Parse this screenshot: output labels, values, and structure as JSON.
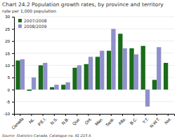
{
  "chart_data": {
    "type": "bar",
    "title": "Chart 24.2 Population growth rates, by province and territory",
    "ylabel": "rate per 1,000 population",
    "annotations": [
      "Source: Statistics Canada, Catalogue no. 91-215-X."
    ],
    "categories": [
      "Canada",
      "NL.",
      "P.E.I.",
      "N.S.",
      "N.B.",
      "Que.",
      "Ont.",
      "Man.",
      "Sask.",
      "Alta.",
      "B.C.",
      "Y.T.",
      "N.W.T.",
      "Nvt."
    ],
    "series": [
      {
        "name": "2007/2008",
        "color": "#1a6b1a",
        "values": [
          12,
          -0.5,
          10,
          1,
          2,
          9,
          10.5,
          13.5,
          16,
          23,
          17,
          18,
          4,
          11
        ]
      },
      {
        "name": "2008/2009",
        "color": "#9090cc",
        "values": [
          12.5,
          5,
          11,
          2,
          3,
          10,
          13.5,
          16,
          25,
          17,
          14.5,
          -7,
          17.5,
          0
        ]
      }
    ],
    "ylim": [
      -10,
      30
    ],
    "yticks": [
      -10,
      -5,
      0,
      5,
      10,
      15,
      20,
      25,
      30
    ],
    "grid": true,
    "legend": "top-left"
  }
}
